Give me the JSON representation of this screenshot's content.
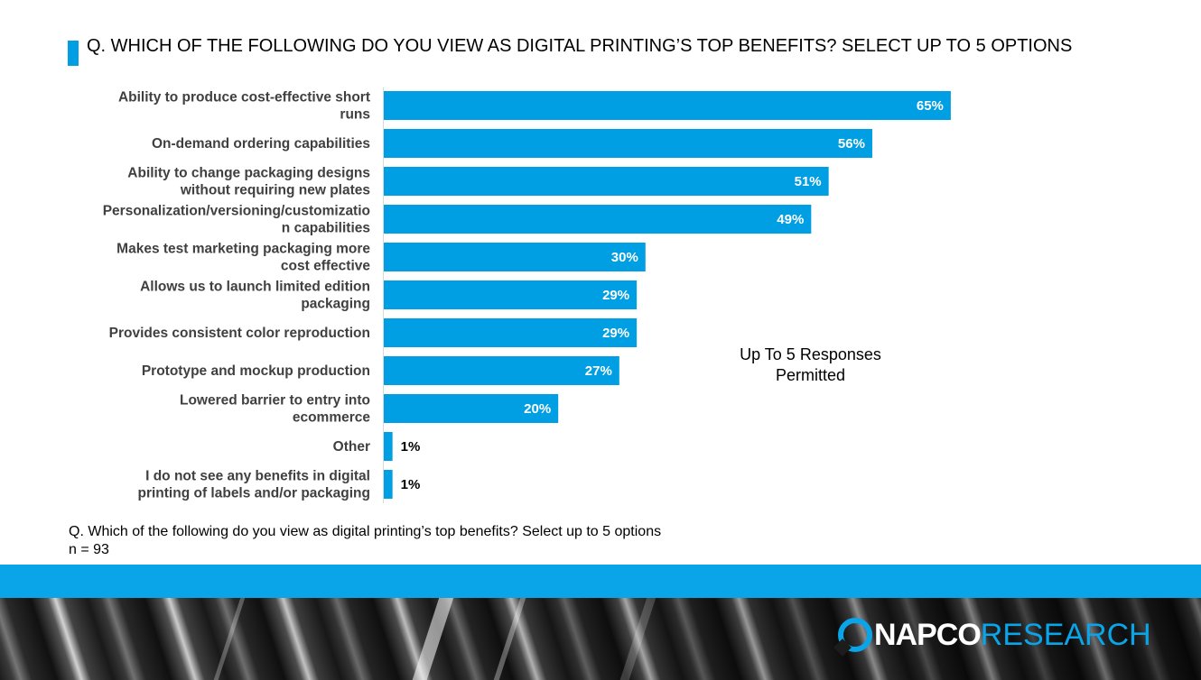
{
  "title": "Q. WHICH OF THE FOLLOWING DO YOU VIEW AS DIGITAL PRINTING’S TOP BENEFITS? SELECT UP TO 5 OPTIONS",
  "annotation": "Up To 5 Responses Permitted",
  "footnote": {
    "question": "Q. Which of the following do you view as digital printing’s top benefits? Select up to 5 options",
    "sample": "n = 93"
  },
  "logo": {
    "part1": "NAPCO",
    "part2": "RESEARCH"
  },
  "colors": {
    "bar": "#009fe3",
    "band": "#0aa5e8"
  },
  "chart_data": {
    "type": "bar",
    "orientation": "horizontal",
    "unit": "%",
    "categories": [
      [
        "Ability to produce cost-effective short",
        "runs"
      ],
      [
        "On-demand ordering capabilities"
      ],
      [
        "Ability to change packaging designs",
        "without requiring new plates"
      ],
      [
        "Personalization/versioning/customizatio",
        "n capabilities"
      ],
      [
        "Makes test marketing packaging more",
        "cost effective"
      ],
      [
        "Allows us to launch limited edition",
        "packaging"
      ],
      [
        "Provides consistent color reproduction"
      ],
      [
        "Prototype and mockup production"
      ],
      [
        "Lowered barrier to entry into",
        "ecommerce"
      ],
      [
        "Other"
      ],
      [
        "I do not see any benefits in digital",
        "printing of labels and/or packaging"
      ]
    ],
    "values": [
      65,
      56,
      51,
      49,
      30,
      29,
      29,
      27,
      20,
      1,
      1
    ],
    "labels": [
      "65%",
      "56%",
      "51%",
      "49%",
      "30%",
      "29%",
      "29%",
      "27%",
      "20%",
      "1%",
      "1%"
    ],
    "xlim": [
      0,
      100
    ],
    "grid": false,
    "legend": "none"
  }
}
